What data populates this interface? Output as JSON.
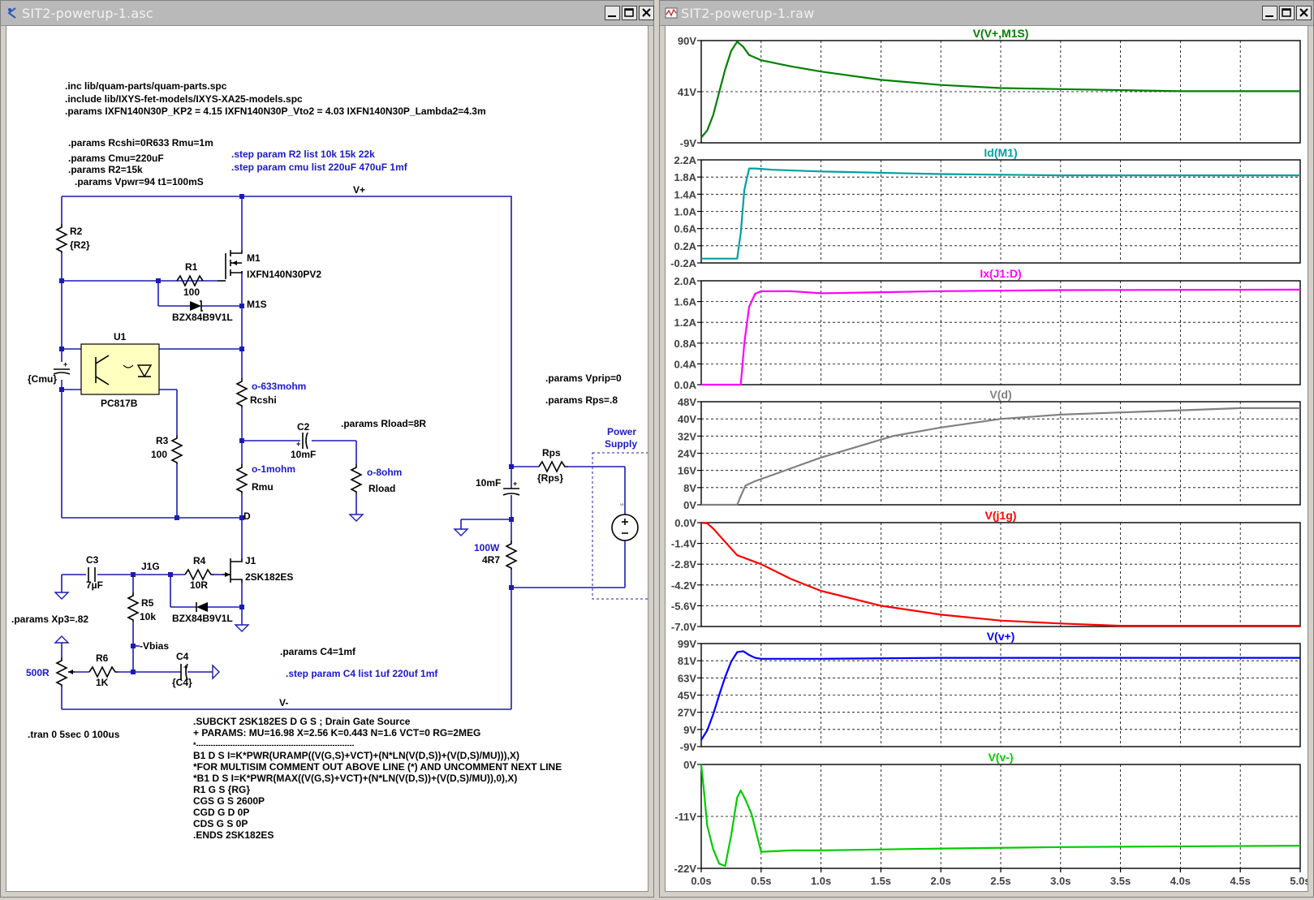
{
  "schematic_window": {
    "title": "SIT2-powerup-1.asc",
    "directives": {
      "inc1": ".inc lib/quam-parts/quam-parts.spc",
      "inc2": ".include lib/IXYS-fet-models/IXYS-XA25-models.spc",
      "p_ixfn": ".params IXFN140N30P_KP2 = 4.15 IXFN140N30P_Vto2 = 4.03 IXFN140N30P_Lambda2=4.3m",
      "p_rcshi": ".params Rcshi=0R633 Rmu=1m",
      "p_cmu": ".params Cmu=220uF",
      "p_r2": ".params R2=15k",
      "p_vpwr": ".params Vpwr=94 t1=100mS",
      "step_r2": ".step param R2 list 10k 15k 22k",
      "step_cmu": ".step param cmu list 220uF 470uF 1mf",
      "p_vprip": ".params Vprip=0",
      "p_rps": ".params Rps=.8",
      "p_rload": ".params Rload=8R",
      "p_xp3": ".params Xp3=.82",
      "p_c4": ".params C4=1mf",
      "step_c4": ".step param C4 list 1uf 220uf 1mf",
      "tran": ".tran 0 5sec 0 100us"
    },
    "subckt_lines": [
      ".SUBCKT 2SK182ES D G S ; Drain Gate Source",
      "+ PARAMS: MU=16.98 X=2.56 K=0.443 N=1.6 VCT=0 RG=2MEG",
      "*-----------------------------------------------------------------",
      "B1 D S I=K*PWR(URAMP((V(G,S)+VCT)+(N*LN(V(D,S))+(V(D,S)/MU))),X)",
      "*FOR MULTISIM COMMENT OUT ABOVE LINE (*) AND UNCOMMENT NEXT LINE",
      "*B1 D S I=K*PWR(MAX((V(G,S)+VCT)+(N*LN(V(D,S))+(V(D,S)/MU)),0),X)",
      "R1 G S {RG}",
      "CGS G S 2600P",
      "CGD G D 0P",
      "CDS G S 0P",
      ".ENDS 2SK182ES"
    ],
    "components": {
      "r2_name": "R2",
      "r2_val": "{R2}",
      "r1_name": "R1",
      "r1_val": "100",
      "m1_name": "M1",
      "m1_model": "IXFN140N30PV2",
      "d1_model": "BZX84B9V1L",
      "u1_name": "U1",
      "u1_model": "PC817B",
      "cmu_val": "{Cmu}",
      "rcshi_name": "Rcshi",
      "rcshi_val": "633mohm",
      "r3_name": "R3",
      "r3_val": "100",
      "rmu_name": "Rmu",
      "rmu_val": "1mohm",
      "c2_name": "C2",
      "c2_val": "10mF",
      "rload_name": "Rload",
      "rload_val": "8ohm",
      "c3_name": "C3",
      "c3_val": "7µF",
      "r4_name": "R4",
      "r4_val": "10R",
      "j1_name": "J1",
      "j1_model": "2SK182ES",
      "d2_model": "BZX84B9V1L",
      "r5_name": "R5",
      "r5_val": "10k",
      "r6_name": "R6",
      "r6_val": "1K",
      "c4_name": "C4",
      "c4_val": "{C4}",
      "pot_val": "500R",
      "cps_val": "10mF",
      "rps_name": "Rps",
      "rps_val": "{Rps}",
      "rd_power": "100W",
      "rd_val": "4R7",
      "ps_label1": "Power",
      "ps_label2": "Supply",
      "src_tiny": "V1"
    },
    "nets": {
      "vplus": "V+",
      "vminus": "V-",
      "m1s": "M1S",
      "d": "D",
      "j1g": "J1G",
      "vbias": "Vbias"
    }
  },
  "waveform_window": {
    "title": "SIT2-powerup-1.raw",
    "x_ticks": [
      "0.0s",
      "0.5s",
      "1.0s",
      "1.5s",
      "2.0s",
      "2.5s",
      "3.0s",
      "3.5s",
      "4.0s",
      "4.5s",
      "5.0s"
    ],
    "chart_data": [
      {
        "type": "line",
        "title": "V(V+,M1S)",
        "color": "#008000",
        "ylim": [
          -9,
          90
        ],
        "yticks": [
          "90V",
          "41V",
          "-9V"
        ],
        "x": [
          0,
          0.05,
          0.1,
          0.15,
          0.2,
          0.25,
          0.3,
          0.35,
          0.4,
          0.5,
          0.75,
          1.0,
          1.5,
          2.0,
          2.5,
          3.0,
          4.0,
          5.0
        ],
        "y": [
          -4,
          3,
          18,
          40,
          62,
          80,
          89,
          84,
          76,
          71,
          65,
          60,
          52,
          47,
          44,
          43,
          41,
          41
        ]
      },
      {
        "type": "line",
        "title": "Id(M1)",
        "color": "#00a0a0",
        "ylim": [
          -0.2,
          2.2
        ],
        "yticks": [
          "2.2A",
          "1.8A",
          "1.4A",
          "1.0A",
          "0.6A",
          "0.2A",
          "-0.2A"
        ],
        "x": [
          0,
          0.2,
          0.3,
          0.33,
          0.36,
          0.4,
          0.45,
          0.6,
          1.0,
          2.0,
          3.0,
          5.0
        ],
        "y": [
          -0.1,
          -0.1,
          -0.1,
          0.5,
          1.5,
          2.0,
          2.0,
          1.97,
          1.93,
          1.87,
          1.84,
          1.84
        ]
      },
      {
        "type": "line",
        "title": "Ix(J1:D)",
        "color": "#ff00ff",
        "ylim": [
          0,
          2.0
        ],
        "yticks": [
          "2.0A",
          "1.6A",
          "1.2A",
          "0.8A",
          "0.4A",
          "0.0A"
        ],
        "x": [
          0,
          0.2,
          0.33,
          0.36,
          0.4,
          0.45,
          0.5,
          0.75,
          1.0,
          1.5,
          2.0,
          3.0,
          5.0
        ],
        "y": [
          0,
          0,
          0,
          0.8,
          1.5,
          1.75,
          1.8,
          1.8,
          1.76,
          1.78,
          1.8,
          1.82,
          1.83
        ]
      },
      {
        "type": "line",
        "title": "V(d)",
        "color": "#808080",
        "ylim": [
          0,
          48
        ],
        "yticks": [
          "48V",
          "40V",
          "32V",
          "24V",
          "16V",
          "8V",
          "0V"
        ],
        "x": [
          0,
          0.3,
          0.33,
          0.37,
          0.45,
          0.6,
          0.8,
          1.0,
          1.3,
          1.6,
          2.0,
          2.5,
          3.0,
          3.5,
          4.0,
          4.5,
          5.0
        ],
        "y": [
          0,
          0,
          4,
          9,
          11,
          14,
          18,
          22,
          27,
          32,
          36,
          40,
          42,
          43,
          44,
          45,
          45
        ]
      },
      {
        "type": "line",
        "title": "V(j1g)",
        "color": "#ff0000",
        "ylim": [
          -7,
          0
        ],
        "yticks": [
          "0.0V",
          "-1.4V",
          "-2.8V",
          "-4.2V",
          "-5.6V",
          "-7.0V"
        ],
        "x": [
          0,
          0.05,
          0.1,
          0.2,
          0.3,
          0.4,
          0.5,
          0.75,
          1.0,
          1.5,
          2.0,
          2.5,
          3.0,
          3.5,
          4.0,
          5.0
        ],
        "y": [
          0,
          -0.05,
          -0.4,
          -1.3,
          -2.2,
          -2.5,
          -2.8,
          -3.8,
          -4.6,
          -5.6,
          -6.2,
          -6.6,
          -6.8,
          -6.95,
          -6.95,
          -6.95
        ]
      },
      {
        "type": "line",
        "title": "V(v+)",
        "color": "#0000ff",
        "ylim": [
          -9,
          99
        ],
        "yticks": [
          "99V",
          "81V",
          "63V",
          "45V",
          "27V",
          "9V",
          "-9V"
        ],
        "x": [
          0,
          0.05,
          0.1,
          0.15,
          0.2,
          0.25,
          0.3,
          0.35,
          0.4,
          0.45,
          0.5,
          0.75,
          1.0,
          2.0,
          3.0,
          5.0
        ],
        "y": [
          -2,
          8,
          25,
          45,
          64,
          80,
          90,
          91,
          87,
          84,
          83,
          83,
          83,
          84,
          84,
          84
        ]
      },
      {
        "type": "line",
        "title": "V(v-)",
        "color": "#00cc00",
        "ylim": [
          -22,
          0
        ],
        "yticks": [
          "0V",
          "-11V",
          "-22V"
        ],
        "x": [
          0,
          0.02,
          0.05,
          0.1,
          0.15,
          0.2,
          0.25,
          0.3,
          0.33,
          0.37,
          0.42,
          0.5,
          0.75,
          1.0,
          2.0,
          3.0,
          5.0
        ],
        "y": [
          0,
          -5,
          -13,
          -18,
          -21,
          -21.5,
          -15,
          -7,
          -5.5,
          -7.5,
          -10.5,
          -18.5,
          -18.2,
          -18.2,
          -17.8,
          -17.5,
          -17.2
        ]
      }
    ]
  }
}
